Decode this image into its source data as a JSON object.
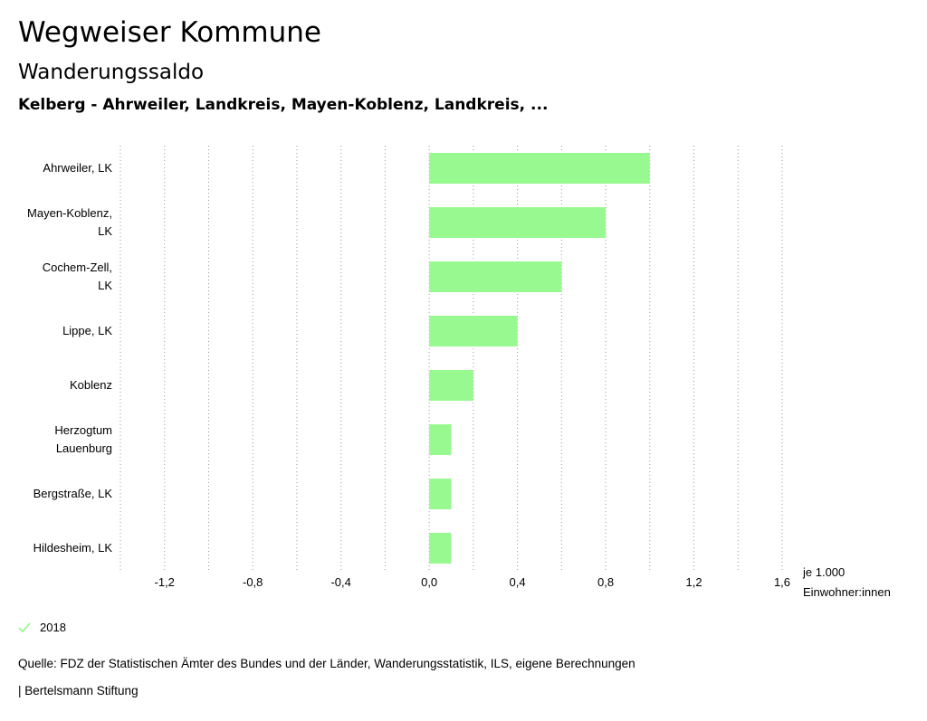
{
  "header": {
    "title": "Wegweiser Kommune",
    "subtitle": "Wanderungssaldo",
    "caption": "Kelberg - Ahrweiler, Landkreis, Mayen-Koblenz, Landkreis, ..."
  },
  "chart_data": {
    "type": "bar",
    "orientation": "horizontal",
    "categories": [
      [
        "Ahrweiler, LK"
      ],
      [
        "Mayen-Koblenz,",
        "LK"
      ],
      [
        "Cochem-Zell,",
        "LK"
      ],
      [
        "Lippe, LK"
      ],
      [
        "Koblenz"
      ],
      [
        "Herzogtum",
        "Lauenburg"
      ],
      [
        "Bergstraße, LK"
      ],
      [
        "Hildesheim, LK"
      ]
    ],
    "series": [
      {
        "name": "2018",
        "values": [
          1.0,
          0.8,
          0.6,
          0.4,
          0.2,
          0.1,
          0.1,
          0.1
        ]
      }
    ],
    "xlim": [
      -1.4,
      1.6
    ],
    "xticks": [
      -1.2,
      -0.8,
      -0.4,
      0.0,
      0.4,
      0.8,
      1.2,
      1.6
    ],
    "xtick_labels": [
      "-1,2",
      "-0,8",
      "-0,4",
      "0,0",
      "0,4",
      "0,8",
      "1,2",
      "1,6"
    ],
    "xlabel": [
      "je 1.000",
      "Einwohner:innen"
    ],
    "grid": "vertical dotted",
    "legend": "bottom-left",
    "bar_color": "#99f991"
  },
  "legend": {
    "label": "2018",
    "icon": "check-icon"
  },
  "footer": {
    "source": "Quelle: FDZ der Statistischen Ämter des Bundes und der Länder, Wanderungsstatistik, ILS, eigene Berechnungen",
    "brand": "| Bertelsmann Stiftung"
  }
}
